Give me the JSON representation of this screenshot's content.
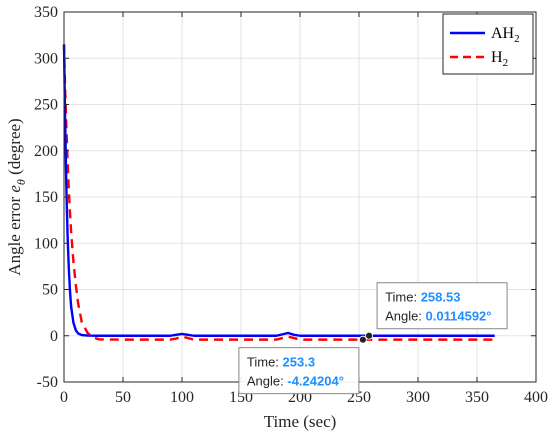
{
  "chart_data": {
    "type": "line",
    "xlabel": "Time (sec)",
    "ylabel": "Angle error e_θ (degree)",
    "xlim": [
      0,
      400
    ],
    "ylim": [
      -50,
      350
    ],
    "xticks": [
      0,
      50,
      100,
      150,
      200,
      250,
      300,
      350,
      400
    ],
    "yticks": [
      -50,
      0,
      50,
      100,
      150,
      200,
      250,
      300,
      350
    ],
    "grid": true,
    "legend_position": "top-right",
    "series": [
      {
        "name": "AH2",
        "color": "#0000ff",
        "style": "solid",
        "x": [
          0,
          0.5,
          1,
          2,
          3,
          4,
          5,
          6,
          8,
          10,
          12,
          15,
          20,
          30,
          50,
          90,
          95,
          100,
          105,
          110,
          150,
          180,
          185,
          190,
          195,
          200,
          250,
          258.53,
          280,
          300,
          330,
          360,
          365
        ],
        "y": [
          315,
          270,
          230,
          160,
          110,
          75,
          50,
          32,
          14,
          6,
          2.5,
          0.8,
          0.2,
          0,
          0,
          0,
          1,
          2,
          1,
          0,
          0,
          0,
          1.5,
          3,
          1,
          0,
          0,
          0.0114592,
          0,
          0,
          0,
          0,
          0
        ]
      },
      {
        "name": "H2",
        "color": "#ff0000",
        "style": "dashed",
        "x": [
          0,
          0.5,
          1,
          2,
          3,
          4,
          5,
          6,
          8,
          10,
          12,
          15,
          20,
          25,
          30,
          50,
          90,
          95,
          100,
          105,
          110,
          150,
          180,
          185,
          190,
          195,
          200,
          250,
          253.3,
          280,
          300,
          330,
          360,
          365
        ],
        "y": [
          315,
          290,
          265,
          225,
          190,
          160,
          135,
          113,
          80,
          55,
          35,
          15,
          3,
          -2,
          -4,
          -4.2,
          -4.2,
          -3,
          -1,
          -2.5,
          -4.2,
          -4.2,
          -4.2,
          -2.5,
          -1,
          -2.5,
          -4.2,
          -4.2,
          -4.24204,
          -4.2,
          -4.2,
          -4.2,
          -4.2,
          -4.2
        ]
      }
    ],
    "annotations": [
      {
        "series": "AH2",
        "time_label": "Time:",
        "time_value": "258.53",
        "angle_label": "Angle:",
        "angle_value": "0.0114592°",
        "x": 258.53,
        "y": 0.0114592
      },
      {
        "series": "H2",
        "time_label": "Time:",
        "time_value": "253.3",
        "angle_label": "Angle:",
        "angle_value": "-4.24204°",
        "x": 253.3,
        "y": -4.24204
      }
    ]
  }
}
